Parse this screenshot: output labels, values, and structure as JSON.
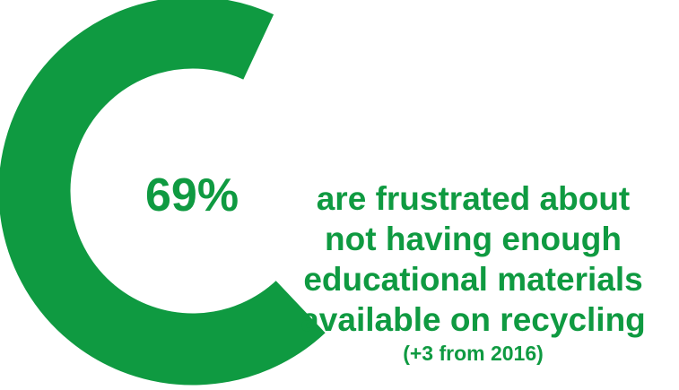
{
  "colors": {
    "accent": "#0f9a41",
    "remainder": "#efefef"
  },
  "chart_data": {
    "type": "pie",
    "variant": "donut",
    "slices": [
      {
        "label": "69%",
        "value": 69,
        "color": "#0f9a41"
      },
      {
        "label": "",
        "value": 31,
        "color": "#efefef"
      }
    ],
    "center_label": "69%",
    "caption_lines": [
      "are frustrated about",
      "not having enough",
      "educational materials",
      "available on recycling"
    ],
    "subcaption": "(+3 from 2016)"
  }
}
